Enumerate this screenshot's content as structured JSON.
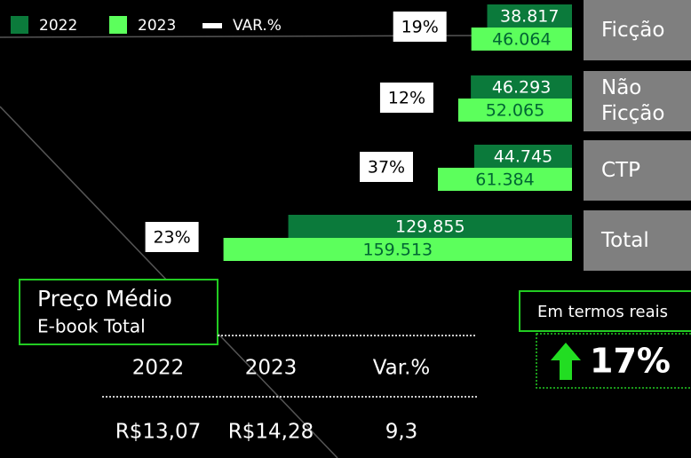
{
  "chart_data": {
    "type": "bar",
    "categories": [
      "Ficção",
      "Não Ficção",
      "CTP",
      "Total"
    ],
    "series": [
      {
        "name": "2022",
        "color": "#0b7a3b",
        "values": [
          38817,
          46293,
          44745,
          129855
        ],
        "value_labels": [
          "38.817",
          "46.293",
          "44.745",
          "129.855"
        ]
      },
      {
        "name": "2023",
        "color": "#5cff5c",
        "values": [
          46064,
          52065,
          61384,
          159513
        ],
        "value_labels": [
          "46.064",
          "52.065",
          "61.384",
          "159.513"
        ]
      }
    ],
    "change": {
      "name": "VAR.%",
      "color": "#ffffff",
      "values": [
        19,
        12,
        37,
        23
      ],
      "value_labels": [
        "19%",
        "12%",
        "37%",
        "23%"
      ]
    }
  },
  "price_table": {
    "title": "Preço Médio",
    "subtitle": "E-book Total",
    "columns": [
      "2022",
      "2023",
      "Var.%"
    ],
    "rows": [
      [
        "R$13,07",
        "R$14,28",
        "9,3"
      ]
    ]
  },
  "real_terms": {
    "label": "Em termos reais",
    "value": 17,
    "value_label": "17%"
  }
}
